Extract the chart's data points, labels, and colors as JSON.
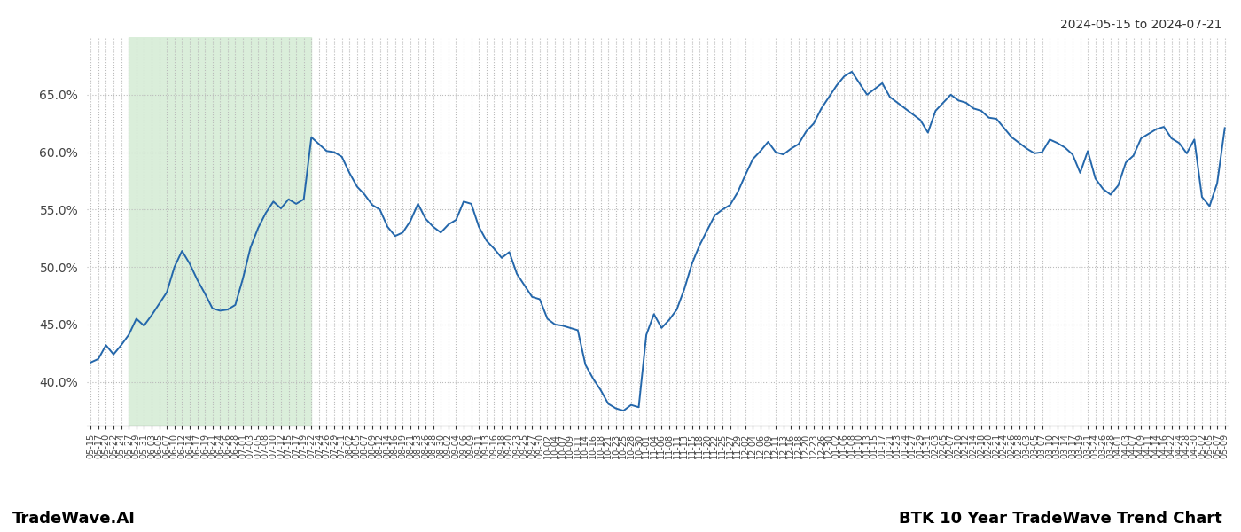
{
  "title_top_right": "2024-05-15 to 2024-07-21",
  "title_bottom_right": "BTK 10 Year TradeWave Trend Chart",
  "title_bottom_left": "TradeWave.AI",
  "ylim": [
    0.362,
    0.7
  ],
  "yticks": [
    0.4,
    0.45,
    0.5,
    0.55,
    0.6,
    0.65
  ],
  "ytick_labels": [
    "40.0%",
    "45.0%",
    "50.0%",
    "55.0%",
    "60.0%",
    "65.0%"
  ],
  "line_color": "#2467ab",
  "line_width": 1.4,
  "bg_color": "#ffffff",
  "grid_color": "#bbbbbb",
  "shade_start_label": "05-27",
  "shade_end_label": "07-20",
  "shade_color": "#daeeda",
  "x_labels": [
    "05-15",
    "05-17",
    "05-20",
    "05-22",
    "05-24",
    "05-27",
    "05-29",
    "05-31",
    "06-03",
    "06-05",
    "06-07",
    "06-10",
    "06-12",
    "06-14",
    "06-17",
    "06-19",
    "06-21",
    "06-24",
    "06-26",
    "06-28",
    "07-01",
    "07-03",
    "07-05",
    "07-08",
    "07-10",
    "07-12",
    "07-15",
    "07-17",
    "07-19",
    "07-22",
    "07-24",
    "07-26",
    "07-29",
    "07-31",
    "08-02",
    "08-05",
    "08-07",
    "08-09",
    "08-12",
    "08-14",
    "08-16",
    "08-19",
    "08-21",
    "08-23",
    "08-26",
    "08-28",
    "08-30",
    "09-02",
    "09-04",
    "09-06",
    "09-09",
    "09-11",
    "09-13",
    "09-16",
    "09-18",
    "09-20",
    "09-23",
    "09-25",
    "09-27",
    "09-30",
    "10-02",
    "10-04",
    "10-07",
    "10-09",
    "10-11",
    "10-14",
    "10-16",
    "10-18",
    "10-21",
    "10-23",
    "10-25",
    "10-28",
    "10-30",
    "11-01",
    "11-04",
    "11-06",
    "11-08",
    "11-11",
    "11-13",
    "11-15",
    "11-18",
    "11-20",
    "11-22",
    "11-25",
    "11-27",
    "11-29",
    "12-02",
    "12-04",
    "12-06",
    "12-09",
    "12-11",
    "12-13",
    "12-16",
    "12-18",
    "12-20",
    "12-23",
    "12-26",
    "12-30",
    "01-02",
    "01-06",
    "01-08",
    "01-10",
    "01-13",
    "01-15",
    "01-17",
    "01-21",
    "01-23",
    "01-24",
    "01-27",
    "01-29",
    "01-31",
    "02-03",
    "02-05",
    "02-07",
    "02-10",
    "02-12",
    "02-14",
    "02-18",
    "02-20",
    "02-21",
    "02-24",
    "02-26",
    "02-28",
    "03-03",
    "03-05",
    "03-07",
    "03-10",
    "03-12",
    "03-14",
    "03-17",
    "03-19",
    "03-21",
    "03-24",
    "03-26",
    "03-28",
    "04-01",
    "04-03",
    "04-07",
    "04-09",
    "04-11",
    "04-14",
    "04-16",
    "04-22",
    "04-24",
    "04-28",
    "04-30",
    "05-02",
    "05-05",
    "05-07",
    "05-09"
  ],
  "values": [
    0.417,
    0.42,
    0.432,
    0.424,
    0.432,
    0.441,
    0.455,
    0.449,
    0.458,
    0.468,
    0.478,
    0.5,
    0.514,
    0.503,
    0.489,
    0.477,
    0.464,
    0.462,
    0.463,
    0.467,
    0.49,
    0.517,
    0.534,
    0.547,
    0.557,
    0.551,
    0.559,
    0.555,
    0.559,
    0.613,
    0.607,
    0.601,
    0.6,
    0.596,
    0.582,
    0.57,
    0.563,
    0.554,
    0.55,
    0.535,
    0.527,
    0.53,
    0.54,
    0.555,
    0.542,
    0.535,
    0.53,
    0.537,
    0.541,
    0.557,
    0.555,
    0.535,
    0.523,
    0.516,
    0.508,
    0.513,
    0.494,
    0.484,
    0.474,
    0.472,
    0.455,
    0.45,
    0.449,
    0.447,
    0.445,
    0.415,
    0.403,
    0.393,
    0.381,
    0.377,
    0.375,
    0.38,
    0.378,
    0.441,
    0.459,
    0.447,
    0.454,
    0.463,
    0.481,
    0.503,
    0.519,
    0.532,
    0.545,
    0.55,
    0.554,
    0.565,
    0.58,
    0.594,
    0.601,
    0.609,
    0.6,
    0.598,
    0.603,
    0.607,
    0.618,
    0.625,
    0.638,
    0.648,
    0.658,
    0.666,
    0.67,
    0.66,
    0.65,
    0.655,
    0.66,
    0.648,
    0.643,
    0.638,
    0.633,
    0.628,
    0.617,
    0.636,
    0.643,
    0.65,
    0.645,
    0.643,
    0.638,
    0.636,
    0.63,
    0.629,
    0.621,
    0.613,
    0.608,
    0.603,
    0.599,
    0.6,
    0.611,
    0.608,
    0.604,
    0.598,
    0.582,
    0.601,
    0.577,
    0.568,
    0.563,
    0.571,
    0.591,
    0.597,
    0.612,
    0.616,
    0.62,
    0.622,
    0.612,
    0.608,
    0.599,
    0.611,
    0.561,
    0.553,
    0.573,
    0.621
  ]
}
